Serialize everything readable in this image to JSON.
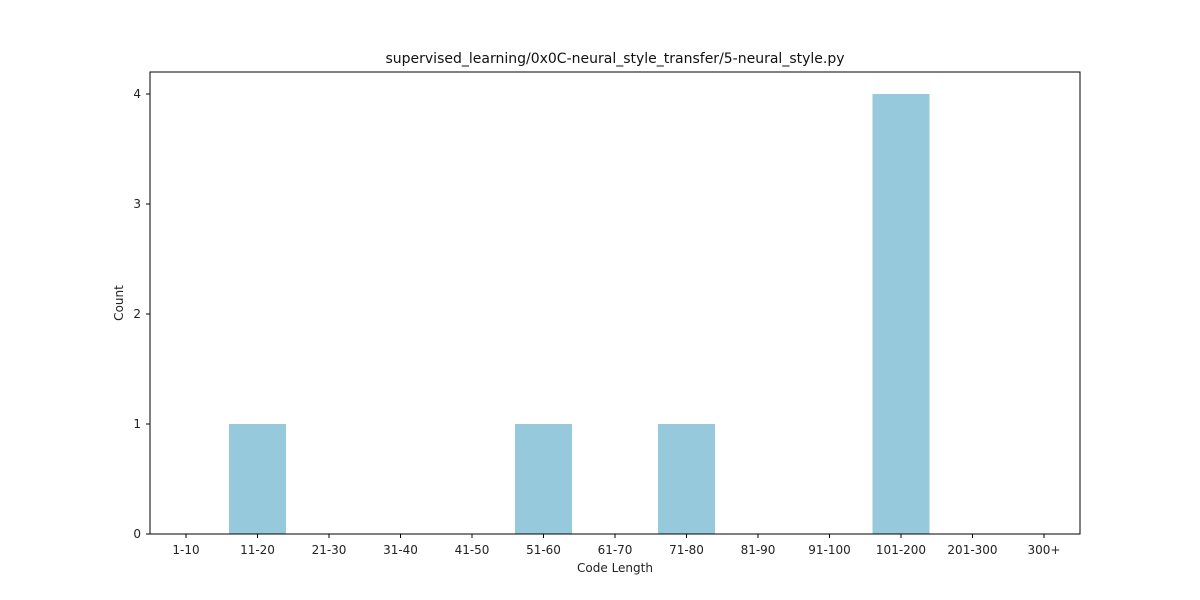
{
  "chart_data": {
    "type": "bar",
    "title": "supervised_learning/0x0C-neural_style_transfer/5-neural_style.py",
    "xlabel": "Code Length",
    "ylabel": "Count",
    "categories": [
      "1-10",
      "11-20",
      "21-30",
      "31-40",
      "41-50",
      "51-60",
      "61-70",
      "71-80",
      "81-90",
      "91-100",
      "101-200",
      "201-300",
      "300+"
    ],
    "values": [
      0,
      1,
      0,
      0,
      0,
      1,
      0,
      1,
      0,
      0,
      4,
      0,
      0
    ],
    "ylim": [
      0,
      4.2
    ],
    "yticks": [
      0,
      1,
      2,
      3,
      4
    ],
    "bar_color": "#96c9dc",
    "grid": false,
    "legend": "none"
  }
}
